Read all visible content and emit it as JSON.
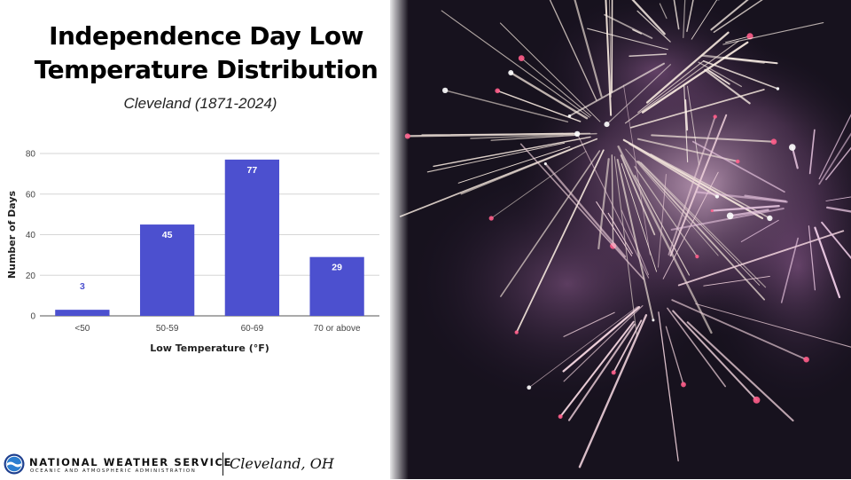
{
  "slide": {
    "title_line1": "Independence Day Low",
    "title_line2": "Temperature Distribution",
    "subtitle": "Cleveland (1871-2024)"
  },
  "chart_data": {
    "type": "bar",
    "title": "Independence Day Low Temperature Distribution",
    "categories": [
      "<50",
      "50-59",
      "60-69",
      "70 or above"
    ],
    "values": [
      3,
      45,
      77,
      29
    ],
    "xlabel": "Low Temperature (°F)",
    "ylabel": "Number of Days",
    "ylim": [
      0,
      80
    ],
    "yticks": [
      0,
      20,
      40,
      60,
      80
    ],
    "grid": true,
    "bar_color": "#4c50cf",
    "data_labels": true,
    "legend": "none"
  },
  "footer": {
    "agency": "NATIONAL WEATHER SERVICE",
    "agency_sub": "OCEANIC AND ATMOSPHERIC ADMINISTRATION",
    "office": "Cleveland, OH"
  },
  "photo": {
    "icon": "fireworks-photo"
  }
}
